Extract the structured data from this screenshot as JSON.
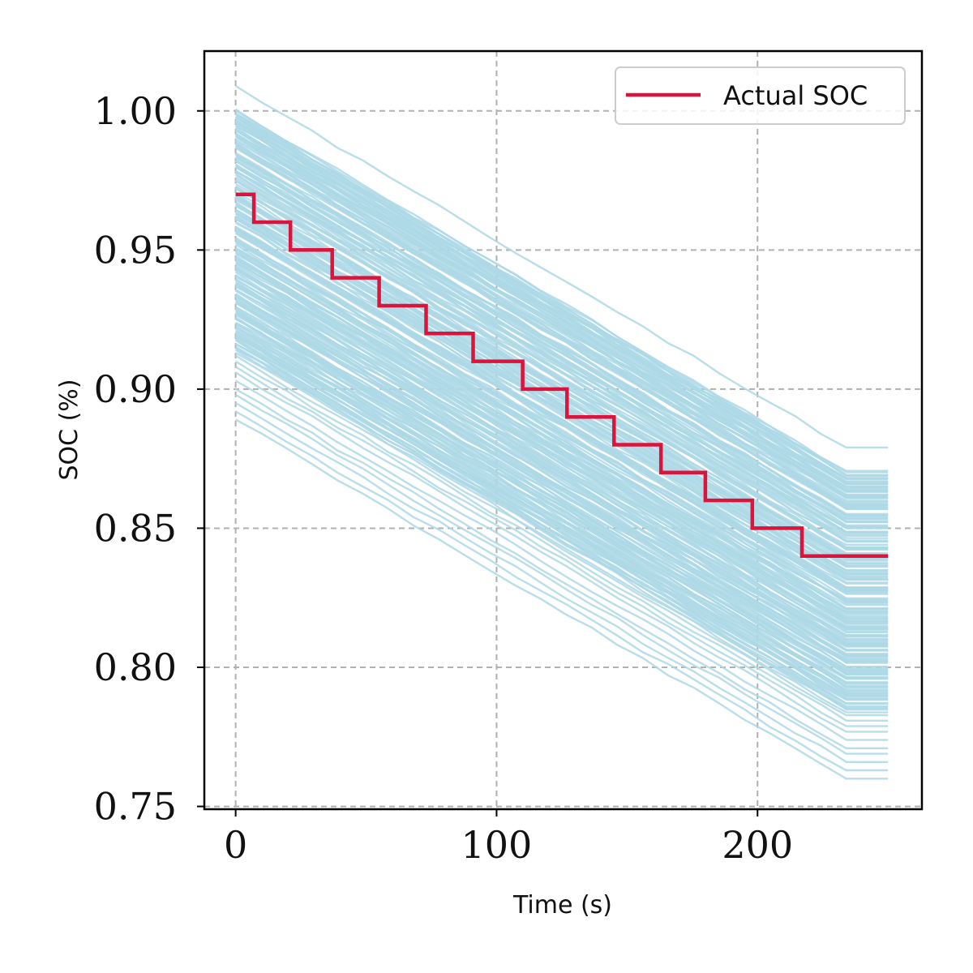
{
  "chart_data": {
    "type": "line",
    "xlabel": "Time (s)",
    "ylabel": "SOC (%)",
    "xlim": [
      -12,
      263
    ],
    "ylim": [
      0.749,
      1.0215
    ],
    "xticks": [
      {
        "value": 0,
        "label": "0"
      },
      {
        "value": 100,
        "label": "100"
      },
      {
        "value": 200,
        "label": "200"
      }
    ],
    "yticks": [
      {
        "value": 0.75,
        "label": "0.75"
      },
      {
        "value": 0.8,
        "label": "0.80"
      },
      {
        "value": 0.85,
        "label": "0.85"
      },
      {
        "value": 0.9,
        "label": "0.90"
      },
      {
        "value": 0.95,
        "label": "0.95"
      },
      {
        "value": 1.0,
        "label": "1.00"
      }
    ],
    "grid": true,
    "legend": {
      "position": "top-right",
      "entries": [
        "Actual SOC"
      ]
    },
    "series": [
      {
        "name": "Actual SOC",
        "color": "#dc143c",
        "step": "post",
        "x": [
          0,
          7,
          21,
          37,
          55,
          73,
          91,
          110,
          127,
          145,
          163,
          180,
          198,
          217,
          250
        ],
        "y": [
          0.97,
          0.96,
          0.95,
          0.94,
          0.93,
          0.92,
          0.91,
          0.9,
          0.89,
          0.88,
          0.87,
          0.86,
          0.85,
          0.84,
          0.84
        ]
      }
    ],
    "ensemble": {
      "color": "#add8e6",
      "count": 200,
      "x_start": 0,
      "x_knee": 234,
      "x_end": 250,
      "start_range": [
        0.889,
        1.009
      ],
      "end_range": [
        0.761,
        0.88
      ],
      "band_top": [
        [
          0,
          1.0
        ],
        [
          234,
          0.87
        ],
        [
          250,
          0.87
        ]
      ],
      "band_bottom": [
        [
          0,
          0.914
        ],
        [
          234,
          0.785
        ],
        [
          250,
          0.785
        ]
      ],
      "outliers_top": [
        1.009,
        1.0,
        0.998,
        0.996,
        0.993,
        0.992
      ],
      "outliers_bottom": [
        0.914,
        0.912,
        0.91,
        0.908,
        0.906,
        0.903,
        0.9,
        0.898,
        0.895,
        0.892,
        0.889
      ]
    }
  }
}
